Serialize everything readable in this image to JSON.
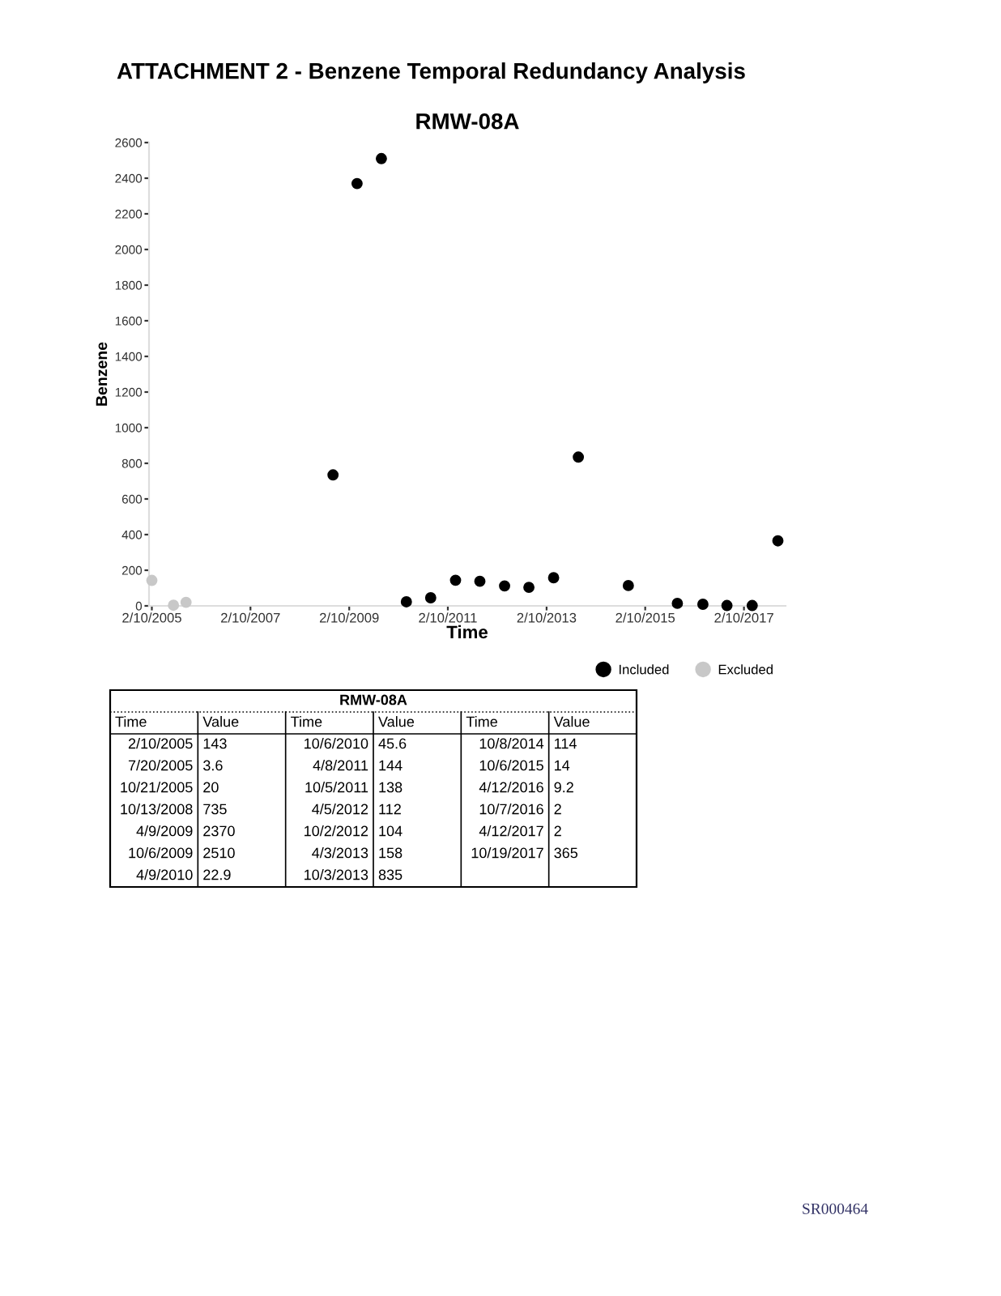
{
  "chart_data": [
    {
      "type": "scatter",
      "title": "ATTACHMENT 2 - Benzene Temporal Redundancy Analysis",
      "subtitle": "RMW-08A",
      "xlabel": "Time",
      "ylabel": "Benzene",
      "series": [
        {
          "name": "Included",
          "color": "#000000",
          "x": [
            "2008-10-13",
            "2009-04-09",
            "2009-10-06",
            "2010-04-09",
            "2010-10-06",
            "2011-04-08",
            "2011-10-05",
            "2012-04-05",
            "2012-10-02",
            "2013-04-03",
            "2013-10-03",
            "2014-10-08",
            "2015-10-06",
            "2016-04-12",
            "2016-10-07",
            "2017-04-12",
            "2017-10-19"
          ],
          "values": [
            735,
            2370,
            2510,
            22.9,
            45.6,
            144,
            138,
            112,
            104,
            158,
            835,
            114,
            14,
            9.2,
            2,
            2,
            365
          ]
        },
        {
          "name": "Excluded",
          "color": "#c8c8c8",
          "x": [
            "2005-02-10",
            "2005-07-20",
            "2005-10-21"
          ],
          "values": [
            143,
            3.6,
            20
          ]
        }
      ],
      "marker": "circle",
      "legend": "bottom right",
      "grid": false,
      "xlim": [
        "2005-01-20",
        "2017-12-15"
      ],
      "xticks": [
        {
          "value": "2005-02-10",
          "label": "2/10/2005"
        },
        {
          "value": "2007-02-10",
          "label": "2/10/2007"
        },
        {
          "value": "2009-02-10",
          "label": "2/10/2009"
        },
        {
          "value": "2011-02-10",
          "label": "2/10/2011"
        },
        {
          "value": "2013-02-10",
          "label": "2/10/2013"
        },
        {
          "value": "2015-02-10",
          "label": "2/10/2015"
        },
        {
          "value": "2017-02-10",
          "label": "2/10/2017"
        }
      ],
      "ylim": [
        0,
        2600
      ],
      "yticks": [
        0,
        200,
        400,
        600,
        800,
        1000,
        1200,
        1400,
        1600,
        1800,
        2000,
        2200,
        2400,
        2600
      ],
      "annotations": [
        "SR000464"
      ]
    },
    {
      "type": "other",
      "title": "RMW-08A",
      "xlabel": "Time",
      "ylabel": "Value",
      "categories": [
        "2/10/2005",
        "7/20/2005",
        "10/21/2005",
        "10/13/2008",
        "4/9/2009",
        "10/6/2009",
        "4/9/2010",
        "10/6/2010",
        "4/8/2011",
        "10/5/2011",
        "4/5/2012",
        "10/2/2012",
        "4/3/2013",
        "10/3/2013",
        "10/8/2014",
        "10/6/2015",
        "4/12/2016",
        "10/7/2016",
        "4/12/2017",
        "10/19/2017"
      ],
      "values": [
        143,
        3.6,
        20,
        735,
        2370,
        2510,
        22.9,
        45.6,
        144,
        138,
        112,
        104,
        158,
        835,
        114,
        14,
        9.2,
        2,
        2,
        365
      ],
      "data_labels": true
    }
  ]
}
